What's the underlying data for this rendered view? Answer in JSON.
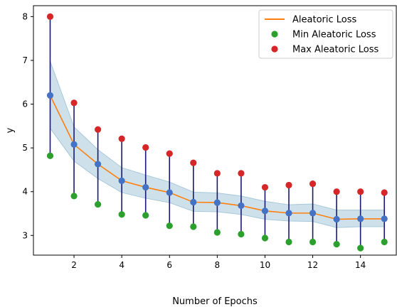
{
  "chart_data": {
    "type": "line",
    "title": "",
    "xlabel": "Number of Epochs",
    "ylabel": "y",
    "xlim": [
      0.3,
      15.5
    ],
    "ylim": [
      2.55,
      8.25
    ],
    "xticks": [
      2,
      4,
      6,
      8,
      10,
      12,
      14
    ],
    "yticks": [
      3,
      4,
      5,
      6,
      7,
      8
    ],
    "grid": false,
    "legend_position": "top-right",
    "x": [
      1,
      2,
      3,
      4,
      5,
      6,
      7,
      8,
      9,
      10,
      11,
      12,
      13,
      14,
      15
    ],
    "series": [
      {
        "name": "Aleatoric Loss",
        "kind": "line",
        "color": "#ff7f0e",
        "values": [
          6.2,
          5.08,
          4.63,
          4.25,
          4.1,
          3.98,
          3.76,
          3.75,
          3.68,
          3.56,
          3.51,
          3.51,
          3.37,
          3.38,
          3.38
        ]
      },
      {
        "name": "Min Aleatoric Loss",
        "kind": "scatter",
        "color": "#2ca02c",
        "values": [
          4.82,
          3.9,
          3.71,
          3.48,
          3.46,
          3.22,
          3.2,
          3.07,
          3.03,
          2.94,
          2.85,
          2.85,
          2.8,
          2.71,
          2.85
        ]
      },
      {
        "name": "Max Aleatoric Loss",
        "kind": "scatter",
        "color": "#d62728",
        "values": [
          8.0,
          6.03,
          5.42,
          5.21,
          5.01,
          4.87,
          4.66,
          4.42,
          4.42,
          4.1,
          4.15,
          4.18,
          4.0,
          4.0,
          3.98
        ]
      }
    ],
    "band": {
      "color": "#a6c8da",
      "lower": [
        5.45,
        4.7,
        4.3,
        3.98,
        3.85,
        3.75,
        3.55,
        3.54,
        3.48,
        3.37,
        3.33,
        3.32,
        3.18,
        3.2,
        3.2
      ],
      "upper": [
        6.98,
        5.48,
        4.96,
        4.55,
        4.38,
        4.22,
        3.99,
        3.97,
        3.9,
        3.78,
        3.7,
        3.72,
        3.58,
        3.58,
        3.58
      ]
    },
    "error_bars_color": "#191970",
    "mean_marker_color": "#4472c4"
  }
}
